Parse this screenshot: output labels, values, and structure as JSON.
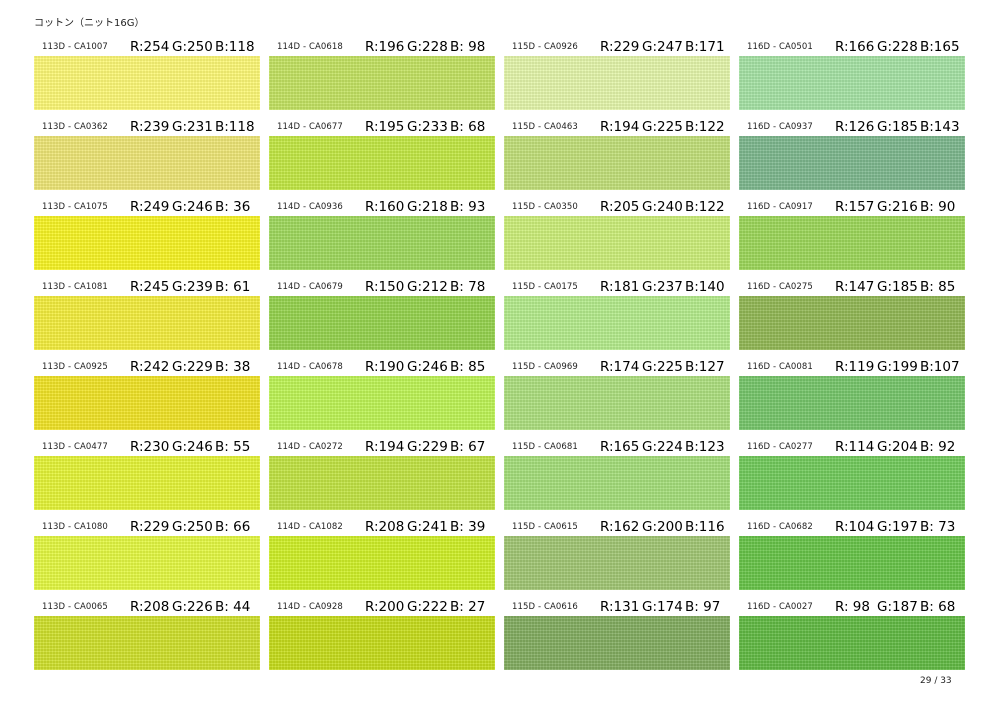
{
  "page_title": "コットン（ニット16G）",
  "page_number": "29 / 33",
  "swatches": [
    {
      "code": "113D - CA1007",
      "r": "R:254",
      "g": "G:250",
      "b": "B:118",
      "color": "#fefa76"
    },
    {
      "code": "114D - CA0618",
      "r": "R:196",
      "g": "G:228",
      "b": "B: 98",
      "color": "#c4e462"
    },
    {
      "code": "115D - CA0926",
      "r": "R:229",
      "g": "G:247",
      "b": "B:171",
      "color": "#e5f7ab"
    },
    {
      "code": "116D - CA0501",
      "r": "R:166",
      "g": "G:228",
      "b": "B:165",
      "color": "#a6e4a5"
    },
    {
      "code": "113D - CA0362",
      "r": "R:239",
      "g": "G:231",
      "b": "B:118",
      "color": "#efe776"
    },
    {
      "code": "114D - CA0677",
      "r": "R:195",
      "g": "G:233",
      "b": "B: 68",
      "color": "#c3e944"
    },
    {
      "code": "115D - CA0463",
      "r": "R:194",
      "g": "G:225",
      "b": "B:122",
      "color": "#c2e17a"
    },
    {
      "code": "116D - CA0937",
      "r": "R:126",
      "g": "G:185",
      "b": "B:143",
      "color": "#7eb98f"
    },
    {
      "code": "113D - CA1075",
      "r": "R:249",
      "g": "G:246",
      "b": "B: 36",
      "color": "#f9f624"
    },
    {
      "code": "114D - CA0936",
      "r": "R:160",
      "g": "G:218",
      "b": "B: 93",
      "color": "#a0da5d"
    },
    {
      "code": "115D - CA0350",
      "r": "R:205",
      "g": "G:240",
      "b": "B:122",
      "color": "#cdf07a"
    },
    {
      "code": "116D - CA0917",
      "r": "R:157",
      "g": "G:216",
      "b": "B: 90",
      "color": "#9dd85a"
    },
    {
      "code": "113D - CA1081",
      "r": "R:245",
      "g": "G:239",
      "b": "B: 61",
      "color": "#f5ef3d"
    },
    {
      "code": "114D - CA0679",
      "r": "R:150",
      "g": "G:212",
      "b": "B: 78",
      "color": "#96d44e"
    },
    {
      "code": "115D - CA0175",
      "r": "R:181",
      "g": "G:237",
      "b": "B:140",
      "color": "#b5ed8c"
    },
    {
      "code": "116D - CA0275",
      "r": "R:147",
      "g": "G:185",
      "b": "B: 85",
      "color": "#93b955"
    },
    {
      "code": "113D - CA0925",
      "r": "R:242",
      "g": "G:229",
      "b": "B: 38",
      "color": "#f2e526"
    },
    {
      "code": "114D - CA0678",
      "r": "R:190",
      "g": "G:246",
      "b": "B: 85",
      "color": "#bef655"
    },
    {
      "code": "115D - CA0969",
      "r": "R:174",
      "g": "G:225",
      "b": "B:127",
      "color": "#aee17f"
    },
    {
      "code": "116D - CA0081",
      "r": "R:119",
      "g": "G:199",
      "b": "B:107",
      "color": "#77c76b"
    },
    {
      "code": "113D - CA0477",
      "r": "R:230",
      "g": "G:246",
      "b": "B: 55",
      "color": "#e6f637"
    },
    {
      "code": "114D - CA0272",
      "r": "R:194",
      "g": "G:229",
      "b": "B: 67",
      "color": "#c2e543"
    },
    {
      "code": "115D - CA0681",
      "r": "R:165",
      "g": "G:224",
      "b": "B:123",
      "color": "#a5e07b"
    },
    {
      "code": "116D - CA0277",
      "r": "R:114",
      "g": "G:204",
      "b": "B: 92",
      "color": "#72cc5c"
    },
    {
      "code": "113D - CA1080",
      "r": "R:229",
      "g": "G:250",
      "b": "B: 66",
      "color": "#e5fa42"
    },
    {
      "code": "114D - CA1082",
      "r": "R:208",
      "g": "G:241",
      "b": "B: 39",
      "color": "#d0f127"
    },
    {
      "code": "115D - CA0615",
      "r": "R:162",
      "g": "G:200",
      "b": "B:116",
      "color": "#a2c874"
    },
    {
      "code": "116D - CA0682",
      "r": "R:104",
      "g": "G:197",
      "b": "B: 73",
      "color": "#68c549"
    },
    {
      "code": "113D - CA0065",
      "r": "R:208",
      "g": "G:226",
      "b": "B: 44",
      "color": "#d0e22c"
    },
    {
      "code": "114D - CA0928",
      "r": "R:200",
      "g": "G:222",
      "b": "B: 27",
      "color": "#c8de1b"
    },
    {
      "code": "115D - CA0616",
      "r": "R:131",
      "g": "G:174",
      "b": "B: 97",
      "color": "#83ae61"
    },
    {
      "code": "116D - CA0027",
      "r": "R: 98",
      "g": "G:187",
      "b": "B: 68",
      "color": "#62bb44"
    }
  ]
}
